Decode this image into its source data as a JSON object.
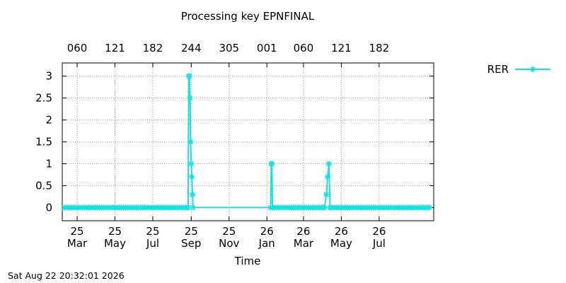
{
  "title": "Processing key EPNFINAL",
  "footer_timestamp": "Sat Aug 22 20:32:01 2026",
  "chart_data": {
    "type": "line",
    "title": "Processing key EPNFINAL",
    "xlabel": "Time",
    "ylabel": "",
    "x_range": [
      "2025-02-05",
      "2026-09-27"
    ],
    "ylim": [
      -0.3,
      3.3
    ],
    "y_ticks": [
      0,
      0.5,
      1,
      1.5,
      2,
      2.5,
      3
    ],
    "y_tick_labels": [
      "0",
      "0.5",
      "1",
      "1.5",
      "2",
      "2.5",
      "3"
    ],
    "grid": true,
    "legend_position": "top-right, outside plot",
    "series_color": "#1ce0e0",
    "x_ticks_bottom": [
      {
        "date": "2025-03-01",
        "line1": "25",
        "line2": "Mar"
      },
      {
        "date": "2025-05-01",
        "line1": "25",
        "line2": "May"
      },
      {
        "date": "2025-07-01",
        "line1": "25",
        "line2": "Jul"
      },
      {
        "date": "2025-09-01",
        "line1": "25",
        "line2": "Sep"
      },
      {
        "date": "2025-11-01",
        "line1": "25",
        "line2": "Nov"
      },
      {
        "date": "2026-01-01",
        "line1": "26",
        "line2": "Jan"
      },
      {
        "date": "2026-03-01",
        "line1": "26",
        "line2": "Mar"
      },
      {
        "date": "2026-05-01",
        "line1": "26",
        "line2": "May"
      },
      {
        "date": "2026-07-01",
        "line1": "26",
        "line2": "Jul"
      }
    ],
    "x_ticks_top": [
      {
        "date": "2025-03-01",
        "label": "060"
      },
      {
        "date": "2025-05-01",
        "label": "121"
      },
      {
        "date": "2025-07-01",
        "label": "182"
      },
      {
        "date": "2025-09-01",
        "label": "244"
      },
      {
        "date": "2025-11-01",
        "label": "305"
      },
      {
        "date": "2026-01-01",
        "label": "001"
      },
      {
        "date": "2026-03-01",
        "label": "060"
      },
      {
        "date": "2026-05-01",
        "label": "121"
      },
      {
        "date": "2026-07-01",
        "label": "182"
      }
    ],
    "series": [
      {
        "name": "RER",
        "segments": [
          {
            "start": "2025-02-08",
            "end": "2026-02-01",
            "step_days": 3,
            "baseline": 0,
            "points": [
              {
                "date": "2025-08-27",
                "value": 0
              },
              {
                "date": "2025-08-28",
                "value": 3
              },
              {
                "date": "2025-08-29",
                "value": 3
              },
              {
                "date": "2025-08-30",
                "value": 2.5
              },
              {
                "date": "2025-08-31",
                "value": 1.5
              },
              {
                "date": "2025-09-01",
                "value": 1
              },
              {
                "date": "2025-09-02",
                "value": 0.7
              },
              {
                "date": "2025-09-03",
                "value": 0.3
              },
              {
                "date": "2025-09-04",
                "value": 0
              },
              {
                "date": "2026-01-07",
                "value": 0
              },
              {
                "date": "2026-01-08",
                "value": 1
              },
              {
                "date": "2026-01-09",
                "value": 1
              },
              {
                "date": "2026-01-10",
                "value": 0
              }
            ]
          },
          {
            "start": "2026-02-04",
            "end": "2026-09-22",
            "step_days": 3,
            "baseline": 0,
            "points": [
              {
                "date": "2026-04-04",
                "value": 0
              },
              {
                "date": "2026-04-07",
                "value": 0.3
              },
              {
                "date": "2026-04-09",
                "value": 0.7
              },
              {
                "date": "2026-04-11",
                "value": 1
              },
              {
                "date": "2026-04-13",
                "value": 0
              }
            ]
          }
        ]
      }
    ]
  }
}
